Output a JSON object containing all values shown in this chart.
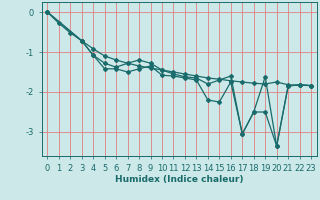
{
  "xlabel": "Humidex (Indice chaleur)",
  "background_color": "#cce8e8",
  "grid_color_v": "#e08080",
  "grid_color_h": "#e08080",
  "line_color": "#1a6b6b",
  "xlim": [
    -0.5,
    23.5
  ],
  "ylim": [
    -3.6,
    0.25
  ],
  "yticks": [
    0,
    -1,
    -2,
    -3
  ],
  "xticks": [
    0,
    1,
    2,
    3,
    4,
    5,
    6,
    7,
    8,
    9,
    10,
    11,
    12,
    13,
    14,
    15,
    16,
    17,
    18,
    19,
    20,
    21,
    22,
    23
  ],
  "line1_x": [
    0,
    1,
    2,
    3,
    4,
    5,
    6,
    7,
    8,
    9,
    10,
    11,
    12,
    13,
    14,
    15,
    16,
    17,
    18,
    19,
    20,
    21,
    22,
    23
  ],
  "line1_y": [
    0.0,
    -0.28,
    -0.52,
    -0.72,
    -0.92,
    -1.1,
    -1.2,
    -1.28,
    -1.35,
    -1.4,
    -1.45,
    -1.5,
    -1.55,
    -1.6,
    -1.65,
    -1.68,
    -1.72,
    -1.75,
    -1.78,
    -1.8,
    -1.75,
    -1.82,
    -1.83,
    -1.84
  ],
  "line2_x": [
    0,
    3,
    4,
    5,
    6,
    7,
    8,
    9,
    10,
    11,
    12,
    13,
    14,
    15,
    16,
    17,
    18,
    19,
    20,
    21,
    22,
    23
  ],
  "line2_y": [
    0.0,
    -0.72,
    -1.08,
    -1.28,
    -1.38,
    -1.28,
    -1.2,
    -1.28,
    -1.45,
    -1.55,
    -1.62,
    -1.65,
    -1.8,
    -1.7,
    -1.6,
    -3.05,
    -2.5,
    -1.62,
    -3.35,
    -1.85,
    -1.82,
    -1.84
  ],
  "line3_x": [
    0,
    3,
    4,
    5,
    6,
    7,
    8,
    9,
    10,
    11,
    12,
    13,
    14,
    15,
    16,
    17,
    18,
    19,
    20,
    21,
    22,
    23
  ],
  "line3_y": [
    0.0,
    -0.72,
    -1.08,
    -1.42,
    -1.42,
    -1.5,
    -1.42,
    -1.35,
    -1.58,
    -1.6,
    -1.65,
    -1.7,
    -2.2,
    -2.25,
    -1.75,
    -3.05,
    -2.5,
    -2.5,
    -3.35,
    -1.85,
    -1.82,
    -1.84
  ]
}
